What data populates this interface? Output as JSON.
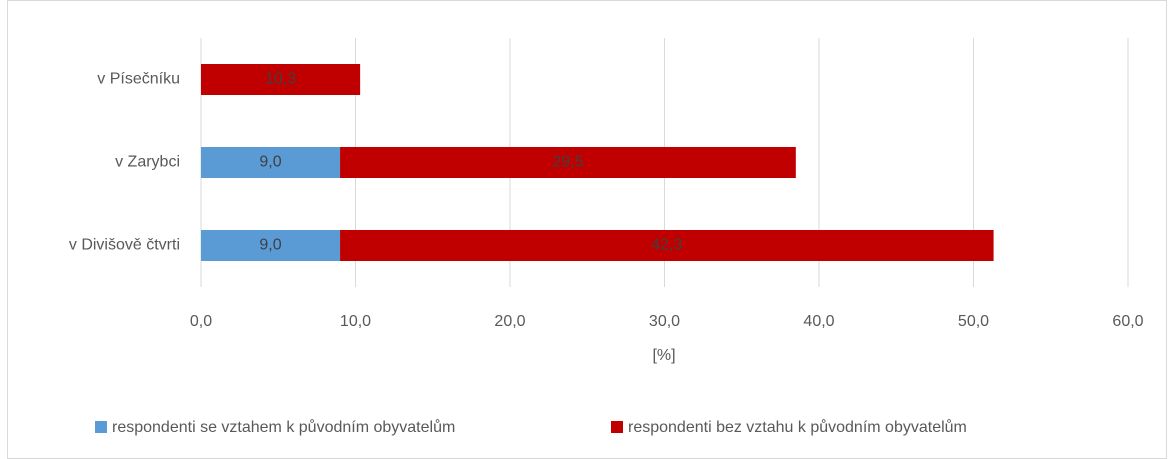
{
  "chart_data": {
    "type": "bar",
    "orientation": "horizontal",
    "stacked": true,
    "categories": [
      "v Písečníku",
      "v Zarybci",
      "v Divišově čtvrti"
    ],
    "series": [
      {
        "name": "respondenti se vztahem k původním obyvatelům",
        "color": "#5b9bd5",
        "values": [
          null,
          9.0,
          9.0
        ],
        "value_labels": [
          null,
          "9,0",
          "9,0"
        ]
      },
      {
        "name": "respondenti bez vztahu k původním obyvatelům",
        "color": "#c00000",
        "values": [
          10.3,
          29.5,
          42.3
        ],
        "value_labels": [
          "10,3",
          "29,5",
          "42,3"
        ]
      }
    ],
    "xlabel": "[%]",
    "xlim": [
      0,
      60
    ],
    "xticks": [
      {
        "value": 0,
        "label": "0,0"
      },
      {
        "value": 10,
        "label": "10,0"
      },
      {
        "value": 20,
        "label": "20,0"
      },
      {
        "value": 30,
        "label": "30,0"
      },
      {
        "value": 40,
        "label": "40,0"
      },
      {
        "value": 50,
        "label": "50,0"
      },
      {
        "value": 60,
        "label": "60,0"
      }
    ],
    "grid": true,
    "legend": "bottom"
  }
}
